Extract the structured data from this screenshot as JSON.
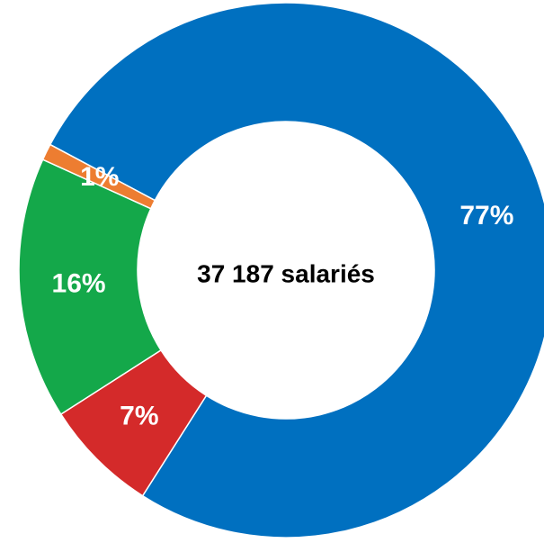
{
  "chart_data": {
    "type": "donut",
    "center_label": "37 187 salariés",
    "values": [
      77,
      7,
      16,
      1
    ],
    "value_labels": [
      "77%",
      "7%",
      "16%",
      "1%"
    ],
    "colors": [
      "#0070c0",
      "#d42a2a",
      "#14a84a",
      "#ed7d31"
    ]
  }
}
